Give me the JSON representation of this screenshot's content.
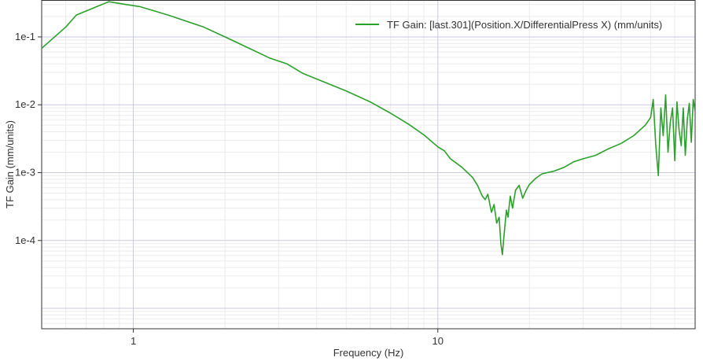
{
  "chart_data": {
    "type": "line",
    "xlabel": "Frequency (Hz)",
    "ylabel": "TF Gain  (mm/units)",
    "x_scale": "log",
    "y_scale": "log",
    "xlim": [
      0.5,
      70
    ],
    "ylim": [
      5e-06,
      0.35
    ],
    "x_ticks": [
      {
        "value": 1,
        "label": "1"
      },
      {
        "value": 10,
        "label": "10"
      }
    ],
    "y_ticks": [
      {
        "value": 0.1,
        "label": "1e-1"
      },
      {
        "value": 0.01,
        "label": "1e-2"
      },
      {
        "value": 0.001,
        "label": "1e-3"
      },
      {
        "value": 0.0001,
        "label": "1e-4"
      }
    ],
    "grid": true,
    "legend_position": "top-right",
    "series": [
      {
        "name": "TF Gain: [last.301](Position.X/DifferentialPress X) (mm/units)",
        "color": "#2ca02c",
        "points": [
          [
            0.5,
            0.068
          ],
          [
            0.6,
            0.14
          ],
          [
            0.65,
            0.21
          ],
          [
            0.83,
            0.33
          ],
          [
            0.95,
            0.3
          ],
          [
            1.05,
            0.28
          ],
          [
            1.3,
            0.21
          ],
          [
            1.7,
            0.14
          ],
          [
            2.0,
            0.1
          ],
          [
            2.4,
            0.068
          ],
          [
            2.8,
            0.049
          ],
          [
            3.2,
            0.04
          ],
          [
            3.6,
            0.029
          ],
          [
            4.2,
            0.022
          ],
          [
            5.0,
            0.016
          ],
          [
            6.0,
            0.011
          ],
          [
            7.0,
            0.0075
          ],
          [
            8.0,
            0.0052
          ],
          [
            9.0,
            0.0036
          ],
          [
            10.0,
            0.0024
          ],
          [
            10.5,
            0.0021
          ],
          [
            11.0,
            0.0016
          ],
          [
            12.0,
            0.0012
          ],
          [
            13.0,
            0.00085
          ],
          [
            13.5,
            0.00065
          ],
          [
            14.0,
            0.00045
          ],
          [
            14.3,
            0.0004
          ],
          [
            14.6,
            0.00048
          ],
          [
            15.0,
            0.00026
          ],
          [
            15.3,
            0.00034
          ],
          [
            15.6,
            0.00018
          ],
          [
            15.9,
            0.00022
          ],
          [
            16.1,
            9e-05
          ],
          [
            16.3,
            6.2e-05
          ],
          [
            16.5,
            0.00012
          ],
          [
            16.8,
            0.00028
          ],
          [
            17.0,
            0.00022
          ],
          [
            17.3,
            0.00045
          ],
          [
            17.6,
            0.0003
          ],
          [
            18.0,
            0.00055
          ],
          [
            18.5,
            0.00065
          ],
          [
            19.0,
            0.00042
          ],
          [
            19.5,
            0.00055
          ],
          [
            20.0,
            0.00067
          ],
          [
            21.0,
            0.00083
          ],
          [
            22.0,
            0.00096
          ],
          [
            24.0,
            0.00105
          ],
          [
            26.0,
            0.0012
          ],
          [
            28.0,
            0.00145
          ],
          [
            30.0,
            0.0016
          ],
          [
            33.0,
            0.0018
          ],
          [
            36.0,
            0.0022
          ],
          [
            40.0,
            0.0027
          ],
          [
            44.0,
            0.0035
          ],
          [
            48.0,
            0.005
          ],
          [
            50.0,
            0.0065
          ],
          [
            51.0,
            0.012
          ],
          [
            52.0,
            0.0025
          ],
          [
            53.0,
            0.0009
          ],
          [
            54.0,
            0.009
          ],
          [
            55.0,
            0.0035
          ],
          [
            56.0,
            0.014
          ],
          [
            57.0,
            0.002
          ],
          [
            58.0,
            0.0055
          ],
          [
            59.0,
            0.009
          ],
          [
            60.0,
            0.0015
          ],
          [
            61.0,
            0.011
          ],
          [
            62.0,
            0.0042
          ],
          [
            63.0,
            0.0025
          ],
          [
            64.0,
            0.009
          ],
          [
            65.0,
            0.0018
          ],
          [
            66.0,
            0.0062
          ],
          [
            67.0,
            0.0105
          ],
          [
            68.0,
            0.0028
          ],
          [
            69.0,
            0.012
          ],
          [
            70.0,
            0.008
          ]
        ]
      }
    ]
  }
}
